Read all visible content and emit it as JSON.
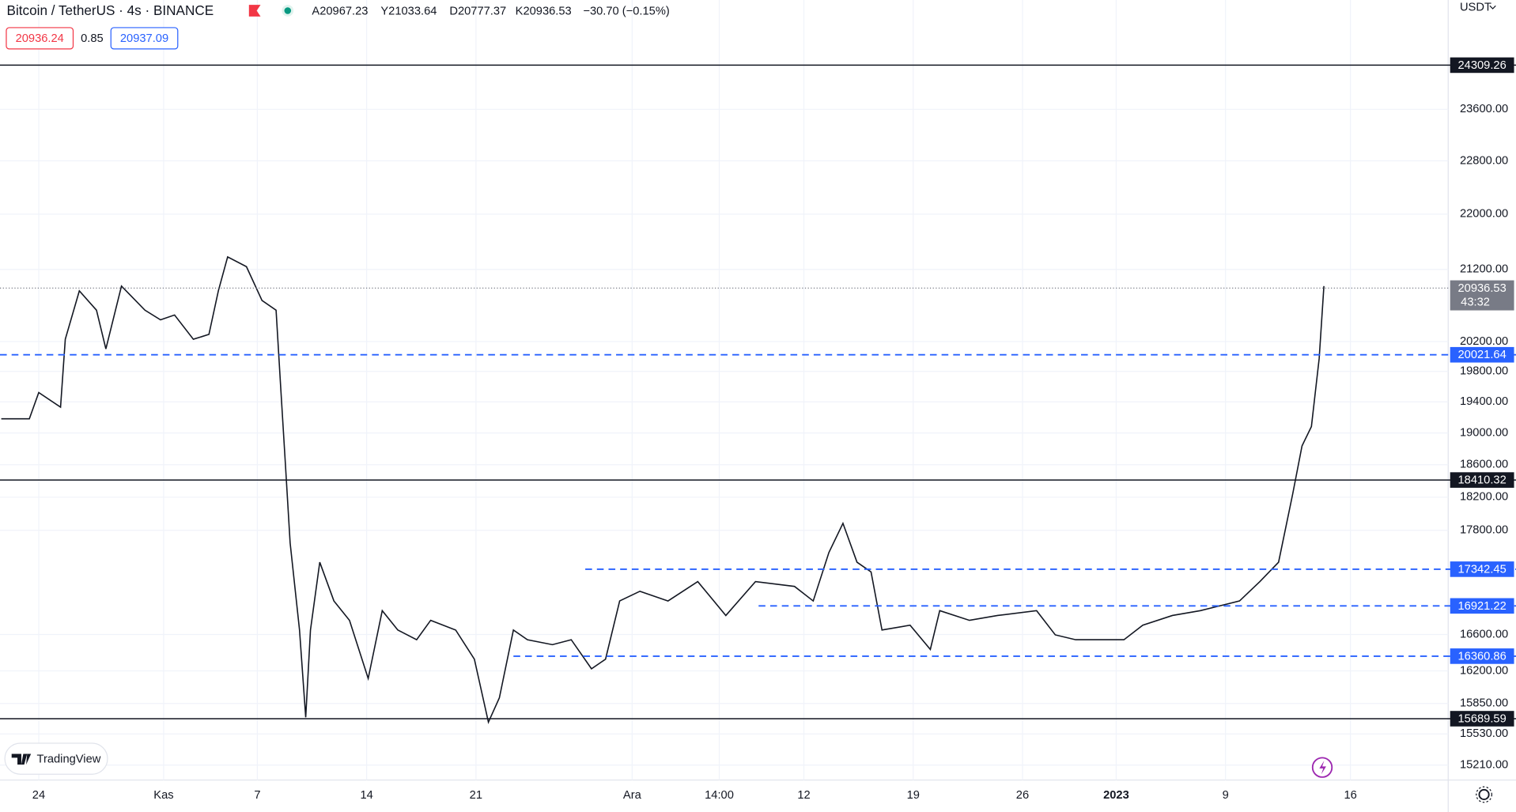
{
  "chart_data": {
    "type": "line",
    "header": {
      "symbol": "Bitcoin / TetherUS · 4s · BINANCE",
      "open": "A20967.23",
      "high": "Y21033.64",
      "low": "D20777.37",
      "close": "K20936.53",
      "change": "−30.70 (−0.15%)",
      "bid": "20936.24",
      "spread": "0.85",
      "ask": "20937.09"
    },
    "currency": "USDT",
    "brand": "TradingView",
    "log_scale": true,
    "color": "#131722",
    "grid": true,
    "xlim": [
      -2.48,
      90.26
    ],
    "ylim": [
      15058,
      25394
    ],
    "xticks": [
      {
        "value": 0,
        "label": "24"
      },
      {
        "value": 8,
        "label": "Kas"
      },
      {
        "value": 14,
        "label": "7"
      },
      {
        "value": 21,
        "label": "14"
      },
      {
        "value": 28,
        "label": "21"
      },
      {
        "value": 38,
        "label": "Ara"
      },
      {
        "value": 43.58,
        "label": "14:00"
      },
      {
        "value": 49,
        "label": "12"
      },
      {
        "value": 56,
        "label": "19"
      },
      {
        "value": 63,
        "label": "26"
      },
      {
        "value": 69,
        "label": "2023"
      },
      {
        "value": 76,
        "label": "9"
      },
      {
        "value": 84,
        "label": "16"
      }
    ],
    "yticks": [
      {
        "value": 23600,
        "label": "23600.00"
      },
      {
        "value": 22800,
        "label": "22800.00"
      },
      {
        "value": 22000,
        "label": "22000.00"
      },
      {
        "value": 21200,
        "label": "21200.00"
      },
      {
        "value": 20200,
        "label": "20200.00"
      },
      {
        "value": 19800,
        "label": "19800.00"
      },
      {
        "value": 19400,
        "label": "19400.00"
      },
      {
        "value": 19000,
        "label": "19000.00"
      },
      {
        "value": 18600,
        "label": "18600.00"
      },
      {
        "value": 18200,
        "label": "18200.00"
      },
      {
        "value": 17800,
        "label": "17800.00"
      },
      {
        "value": 16600,
        "label": "16600.00"
      },
      {
        "value": 16200,
        "label": "16200.00"
      },
      {
        "value": 15850,
        "label": "15850.00"
      },
      {
        "value": 15530,
        "label": "15530.00"
      },
      {
        "value": 15210,
        "label": "15210.00"
      }
    ],
    "x": [
      -2.4,
      -0.6,
      0,
      1.4,
      1.7,
      2.6,
      3.7,
      4.3,
      5.3,
      6.8,
      7.8,
      8.7,
      9.9,
      10.9,
      11.5,
      12.1,
      13.3,
      14.3,
      15.2,
      15.5,
      15.8,
      16.1,
      16.7,
      17.1,
      17.4,
      18,
      18.9,
      19.9,
      21.1,
      22,
      23,
      24.2,
      25.1,
      26.7,
      27.9,
      28.8,
      29.5,
      30.4,
      31.3,
      32.9,
      34.1,
      35.4,
      36.3,
      37.2,
      38.5,
      40.3,
      42.2,
      44,
      45.9,
      48.4,
      49.6,
      50.6,
      51.5,
      52.4,
      53.3,
      54,
      55.8,
      57.1,
      57.7,
      59.6,
      61.4,
      63.9,
      65.1,
      66.4,
      67.6,
      69.5,
      70.7,
      72.6,
      74.4,
      76.9,
      78.2,
      79.4,
      80.3,
      80.9,
      81.5,
      82,
      82.3
    ],
    "values": [
      19181,
      19181,
      19521,
      19331,
      20231,
      20898,
      20629,
      20100,
      20966,
      20629,
      20495,
      20562,
      20231,
      20297,
      20898,
      21379,
      21240,
      20763,
      20629,
      19584,
      18593,
      17652,
      16650,
      15704,
      16650,
      17424,
      16977,
      16758,
      16118,
      16867,
      16650,
      16542,
      16758,
      16650,
      16328,
      15653,
      15910,
      16650,
      16542,
      16488,
      16542,
      16223,
      16328,
      16977,
      17088,
      16977,
      17199,
      16813,
      17199,
      17144,
      16977,
      17538,
      17883,
      17424,
      17311,
      16650,
      16704,
      16435,
      16867,
      16758,
      16813,
      16867,
      16596,
      16542,
      16542,
      16542,
      16704,
      16813,
      16867,
      16977,
      17199,
      17424,
      18234,
      18836,
      19082,
      19970,
      20966
    ],
    "levels": [
      {
        "value": 24309.26,
        "style": "solid",
        "color": "#131722"
      },
      {
        "value": 20021.64,
        "style": "dashed",
        "color": "#2962ff"
      },
      {
        "value": 18410.32,
        "style": "solid",
        "color": "#131722"
      },
      {
        "value": 17342.45,
        "style": "dashed",
        "color": "#2962ff",
        "x_start": 35.0
      },
      {
        "value": 16921.22,
        "style": "dashed",
        "color": "#2962ff",
        "x_start": 46.1
      },
      {
        "value": 16360.86,
        "style": "dashed",
        "color": "#2962ff",
        "x_start": 30.4
      },
      {
        "value": 15689.59,
        "style": "solid",
        "color": "#131722"
      }
    ],
    "last_price": {
      "value": 20936.53,
      "countdown": "43:32",
      "color": "#787b86"
    }
  }
}
